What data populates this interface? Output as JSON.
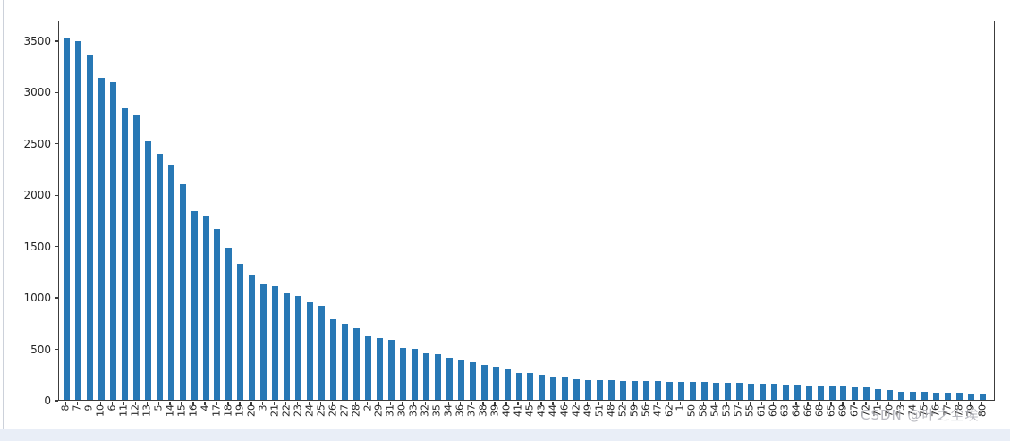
{
  "chart_data": {
    "type": "bar",
    "categories": [
      "8",
      "7",
      "9",
      "10",
      "6",
      "11",
      "12",
      "13",
      "5",
      "14",
      "15",
      "16",
      "4",
      "17",
      "18",
      "19",
      "20",
      "3",
      "21",
      "22",
      "23",
      "24",
      "25",
      "26",
      "27",
      "28",
      "2",
      "29",
      "31",
      "30",
      "33",
      "32",
      "35",
      "34",
      "36",
      "37",
      "38",
      "39",
      "40",
      "41",
      "45",
      "43",
      "44",
      "46",
      "42",
      "49",
      "51",
      "48",
      "52",
      "59",
      "56",
      "47",
      "62",
      "1",
      "50",
      "58",
      "54",
      "53",
      "57",
      "55",
      "61",
      "60",
      "63",
      "64",
      "66",
      "68",
      "65",
      "69",
      "67",
      "72",
      "71",
      "70",
      "73",
      "74",
      "75",
      "76",
      "77",
      "78",
      "79",
      "80"
    ],
    "values": [
      3520,
      3490,
      3360,
      3130,
      3095,
      2840,
      2770,
      2520,
      2390,
      2290,
      2100,
      1835,
      1790,
      1660,
      1480,
      1320,
      1220,
      1130,
      1105,
      1045,
      1010,
      950,
      915,
      780,
      740,
      695,
      620,
      600,
      580,
      505,
      495,
      455,
      445,
      405,
      390,
      365,
      340,
      320,
      305,
      265,
      258,
      245,
      225,
      215,
      198,
      193,
      190,
      188,
      185,
      183,
      181,
      179,
      177,
      175,
      173,
      171,
      168,
      165,
      163,
      161,
      158,
      155,
      152,
      150,
      141,
      139,
      137,
      135,
      122,
      119,
      101,
      98,
      80,
      78,
      76,
      74,
      72,
      66,
      61,
      56
    ],
    "yticks": [
      0,
      500,
      1000,
      1500,
      2000,
      2500,
      3000,
      3500
    ],
    "ylim": [
      0,
      3700
    ],
    "xlabel": "",
    "ylabel": "",
    "grid": false,
    "legend": null,
    "bar_color": "#2878b5",
    "axis_color": "#3c3c3c",
    "tick_label_color": "#262626"
  },
  "watermark": {
    "text": "CSDN @叶之尘埃"
  }
}
